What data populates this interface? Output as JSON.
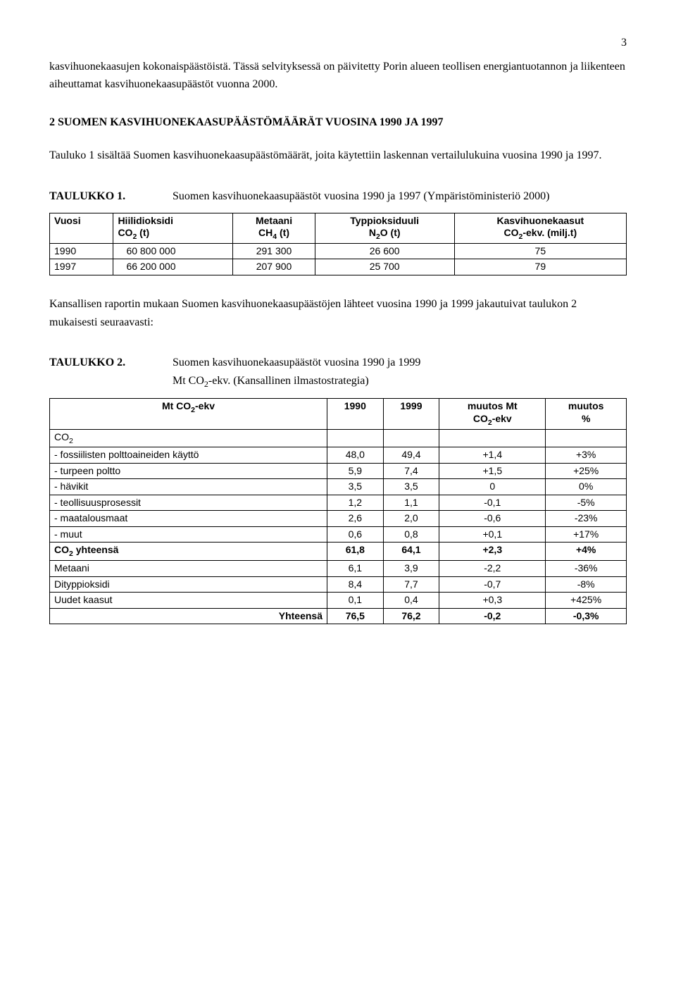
{
  "page_number": "3",
  "intro_paragraph": "kasvihuonekaasujen kokonaispäästöistä. Tässä selvityksessä on päivitetty Porin alueen teollisen energiantuotannon ja liikenteen aiheuttamat kasvihuonekaasupäästöt vuonna 2000.",
  "section2_heading": "2 SUOMEN KASVIHUONEKAASUPÄÄSTÖMÄÄRÄT VUOSINA 1990 JA 1997",
  "section2_paragraph": "Tauluko 1 sisältää Suomen kasvihuonekaasupäästömäärät, joita käytettiin laskennan vertailulukuina vuosina 1990 ja 1997.",
  "table1": {
    "label": "TAULUKKO 1.",
    "caption": "Suomen kasvihuonekaasupäästöt vuosina 1990 ja 1997 (Ympäristöministeriö 2000)",
    "headers": {
      "c1": "Vuosi",
      "c2a": "Hiilidioksidi",
      "c2b": "CO",
      "c2c": " (t)",
      "c3a": "Metaani",
      "c3b": "CH",
      "c3c": " (t)",
      "c4a": "Typpioksiduuli",
      "c4b": "N",
      "c4c": "O (t)",
      "c5a": "Kasvihuonekaasut",
      "c5b": "CO",
      "c5c": "-ekv. (milj.t)"
    },
    "rows": [
      {
        "vuosi": "1990",
        "co2": "60 800 000",
        "ch4": "291 300",
        "n2o": "26 600",
        "ekv": "75"
      },
      {
        "vuosi": "1997",
        "co2": "66 200 000",
        "ch4": "207 900",
        "n2o": "25 700",
        "ekv": "79"
      }
    ]
  },
  "between_tables_paragraph": "Kansallisen raportin mukaan Suomen kasvihuonekaasupäästöjen lähteet vuosina 1990 ja 1999 jakautuivat taulukon 2 mukaisesti seuraavasti:",
  "table2": {
    "label": "TAULUKKO 2.",
    "caption_part1": "Suomen kasvihuonekaasupäästöt vuosina 1990 ja 1999",
    "caption_part2a": "Mt CO",
    "caption_part2b": "-ekv. (Kansallinen ilmastostrategia)",
    "headers": {
      "c1a": "Mt CO",
      "c1b": "-ekv",
      "c2": "1990",
      "c3": "1999",
      "c4a": "muutos Mt",
      "c4b": "CO",
      "c4c": "-ekv",
      "c5a": "muutos",
      "c5b": "%"
    },
    "rows": [
      {
        "label": "CO",
        "sub": "2",
        "v1990": "",
        "v1999": "",
        "dMt": "",
        "dPct": "",
        "bold": false,
        "is_section": true
      },
      {
        "label": "- fossiilisten polttoaineiden käyttö",
        "v1990": "48,0",
        "v1999": "49,4",
        "dMt": "+1,4",
        "dPct": "+3%",
        "bold": false
      },
      {
        "label": "- turpeen poltto",
        "v1990": "5,9",
        "v1999": "7,4",
        "dMt": "+1,5",
        "dPct": "+25%",
        "bold": false
      },
      {
        "label": "- hävikit",
        "v1990": "3,5",
        "v1999": "3,5",
        "dMt": "0",
        "dPct": "0%",
        "bold": false
      },
      {
        "label": "- teollisuusprosessit",
        "v1990": "1,2",
        "v1999": "1,1",
        "dMt": "-0,1",
        "dPct": "-5%",
        "bold": false
      },
      {
        "label": "- maatalousmaat",
        "v1990": "2,6",
        "v1999": "2,0",
        "dMt": "-0,6",
        "dPct": "-23%",
        "bold": false
      },
      {
        "label": "- muut",
        "v1990": "0,6",
        "v1999": "0,8",
        "dMt": "+0,1",
        "dPct": "+17%",
        "bold": false
      },
      {
        "label": "CO",
        "sub": "2",
        "suffix": " yhteensä",
        "v1990": "61,8",
        "v1999": "64,1",
        "dMt": "+2,3",
        "dPct": "+4%",
        "bold": true
      },
      {
        "label": "Metaani",
        "v1990": "6,1",
        "v1999": "3,9",
        "dMt": "-2,2",
        "dPct": "-36%",
        "bold": false
      },
      {
        "label": "Dityppioksidi",
        "v1990": "8,4",
        "v1999": "7,7",
        "dMt": "-0,7",
        "dPct": "-8%",
        "bold": false
      },
      {
        "label": "Uudet kaasut",
        "v1990": "0,1",
        "v1999": "0,4",
        "dMt": "+0,3",
        "dPct": "+425%",
        "bold": false
      },
      {
        "label_prefix": "",
        "label": "Yhteensä",
        "right_label": true,
        "v1990": "76,5",
        "v1999": "76,2",
        "dMt": "-0,2",
        "dPct": "-0,3%",
        "bold": true
      }
    ]
  }
}
